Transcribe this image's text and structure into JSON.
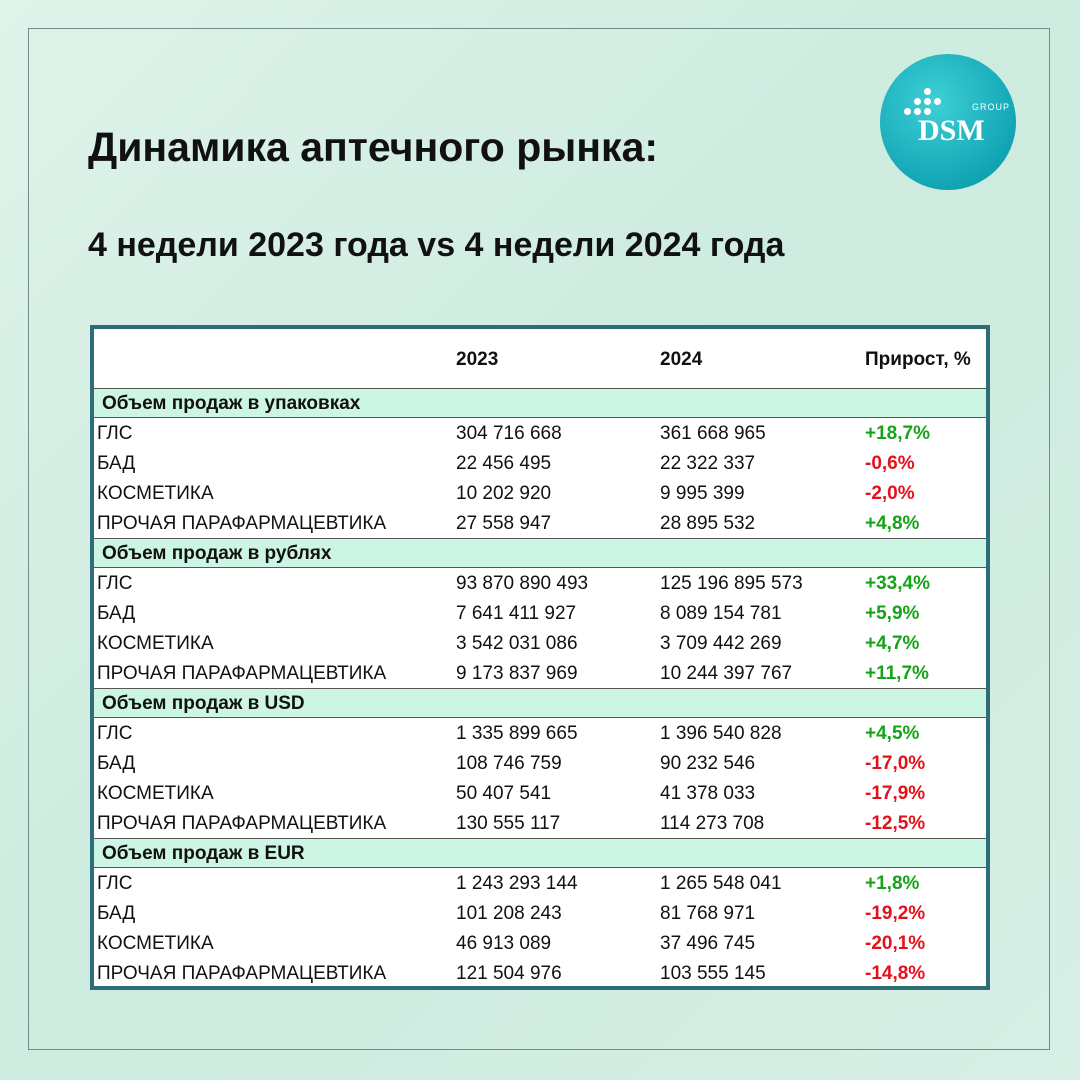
{
  "header": {
    "title": "Динамика аптечного рынка:",
    "subtitle": "4 недели 2023 года vs 4 недели 2024 года"
  },
  "logo": {
    "small": "GROUP",
    "big": "DSM"
  },
  "table": {
    "columns": [
      "",
      "2023",
      "2024",
      "Прирост, %"
    ],
    "positive_color": "#17a317",
    "negative_color": "#e3111b",
    "sections": [
      {
        "title": "Объем продаж в упаковках",
        "rows": [
          [
            "ГЛС",
            "304 716 668",
            "361 668 965",
            "+18,7%"
          ],
          [
            "БАД",
            "22 456 495",
            "22 322 337",
            "-0,6%"
          ],
          [
            "КОСМЕТИКА",
            "10 202 920",
            "9 995 399",
            "-2,0%"
          ],
          [
            "ПРОЧАЯ ПАРАФАРМАЦЕВТИКА",
            "27 558 947",
            "28 895 532",
            "+4,8%"
          ]
        ]
      },
      {
        "title": "Объем продаж в рублях",
        "rows": [
          [
            "ГЛС",
            "93 870 890 493",
            "125 196 895 573",
            "+33,4%"
          ],
          [
            "БАД",
            "7 641 411 927",
            "8 089 154 781",
            "+5,9%"
          ],
          [
            "КОСМЕТИКА",
            "3 542 031 086",
            "3 709 442 269",
            "+4,7%"
          ],
          [
            "ПРОЧАЯ ПАРАФАРМАЦЕВТИКА",
            "9 173 837 969",
            "10 244 397 767",
            "+11,7%"
          ]
        ]
      },
      {
        "title": "Объем продаж в USD",
        "rows": [
          [
            "ГЛС",
            "1 335 899 665",
            "1 396 540 828",
            "+4,5%"
          ],
          [
            "БАД",
            "108 746 759",
            "90 232 546",
            "-17,0%"
          ],
          [
            "КОСМЕТИКА",
            "50 407 541",
            "41 378 033",
            "-17,9%"
          ],
          [
            "ПРОЧАЯ ПАРАФАРМАЦЕВТИКА",
            "130 555 117",
            "114 273 708",
            "-12,5%"
          ]
        ]
      },
      {
        "title": "Объем продаж в EUR",
        "rows": [
          [
            "ГЛС",
            "1 243 293 144",
            "1 265 548 041",
            "+1,8%"
          ],
          [
            "БАД",
            "101 208 243",
            "81 768 971",
            "-19,2%"
          ],
          [
            "КОСМЕТИКА",
            "46 913 089",
            "37 496 745",
            "-20,1%"
          ],
          [
            "ПРОЧАЯ ПАРАФАРМАЦЕВТИКА",
            "121 504 976",
            "103 555 145",
            "-14,8%"
          ]
        ]
      }
    ]
  }
}
